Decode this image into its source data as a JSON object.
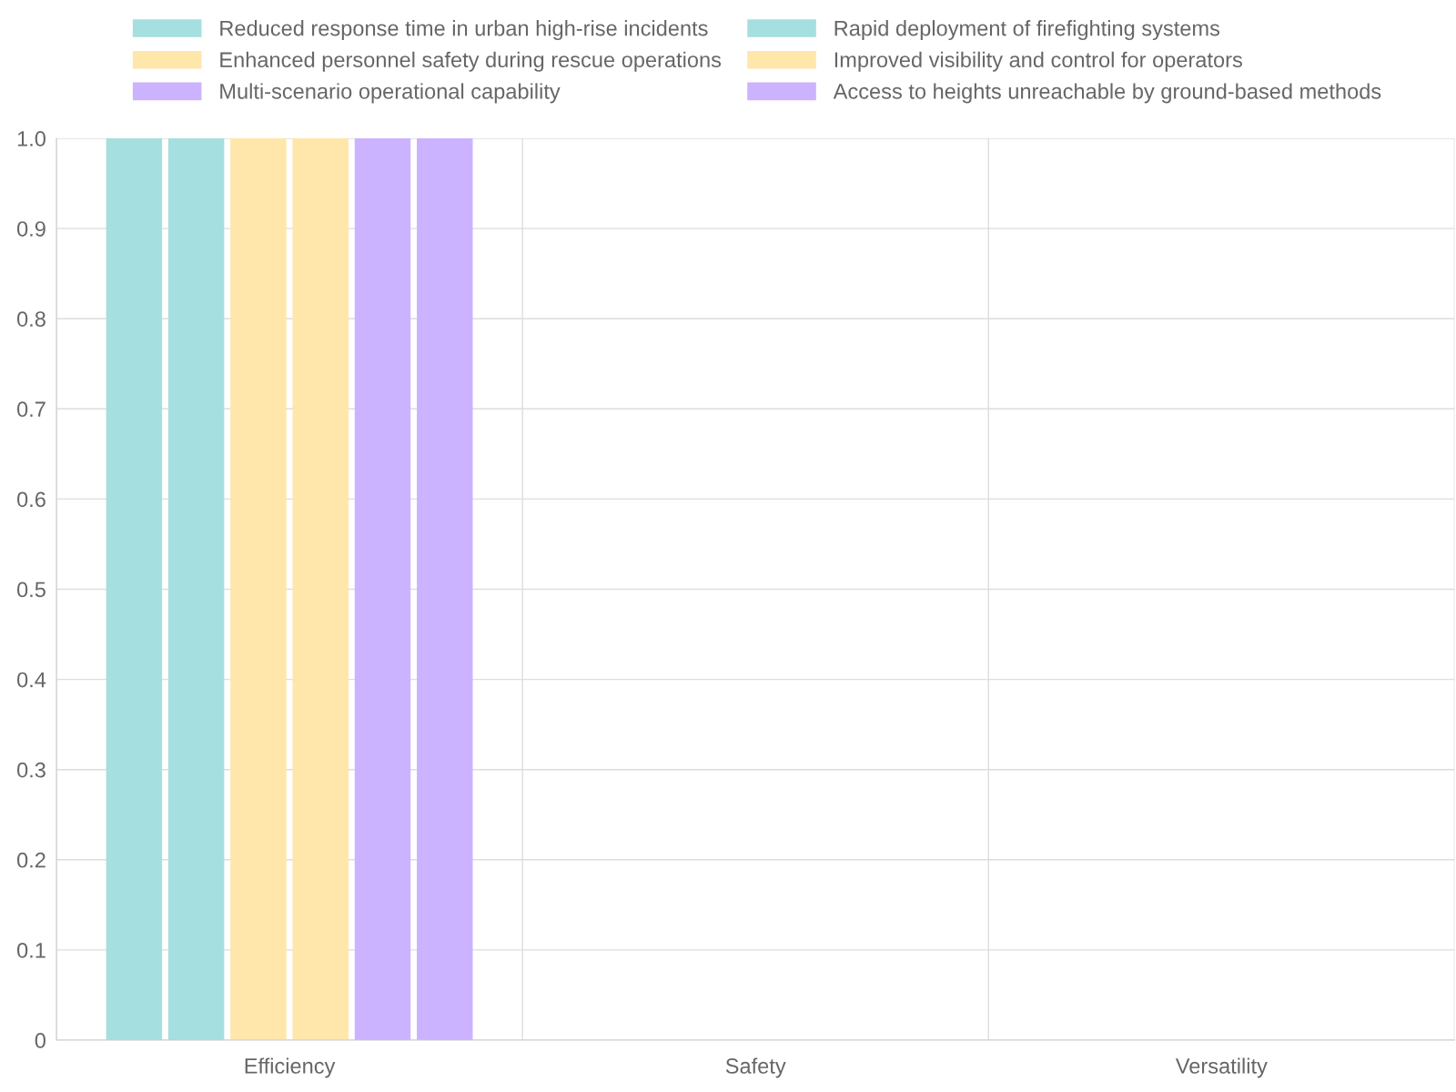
{
  "chart_data": {
    "type": "bar",
    "categories": [
      "Efficiency",
      "Safety",
      "Versatility"
    ],
    "series": [
      {
        "name": "Reduced response time in urban high-rise incidents",
        "color": "#a5dfdf",
        "values": [
          1,
          null,
          null
        ]
      },
      {
        "name": "Rapid deployment of firefighting systems",
        "color": "#a5dfdf",
        "values": [
          1,
          null,
          null
        ]
      },
      {
        "name": "Enhanced personnel safety during rescue operations",
        "color": "#ffe6aa",
        "values": [
          1,
          null,
          null
        ]
      },
      {
        "name": "Improved visibility and control for operators",
        "color": "#ffe6aa",
        "values": [
          1,
          null,
          null
        ]
      },
      {
        "name": "Multi-scenario operational capability",
        "color": "#cbb3ff",
        "values": [
          1,
          null,
          null
        ]
      },
      {
        "name": "Access to heights unreachable by ground-based methods",
        "color": "#cbb3ff",
        "values": [
          1,
          null,
          null
        ]
      }
    ],
    "ylim": [
      0,
      1
    ],
    "yticks": [
      {
        "value": 0,
        "label": "0"
      },
      0.1,
      0.2,
      0.3,
      0.4,
      0.5,
      0.6,
      0.7,
      0.8,
      0.9,
      {
        "value": 1,
        "label": "1.0"
      }
    ],
    "grid": true,
    "legend": "top"
  }
}
